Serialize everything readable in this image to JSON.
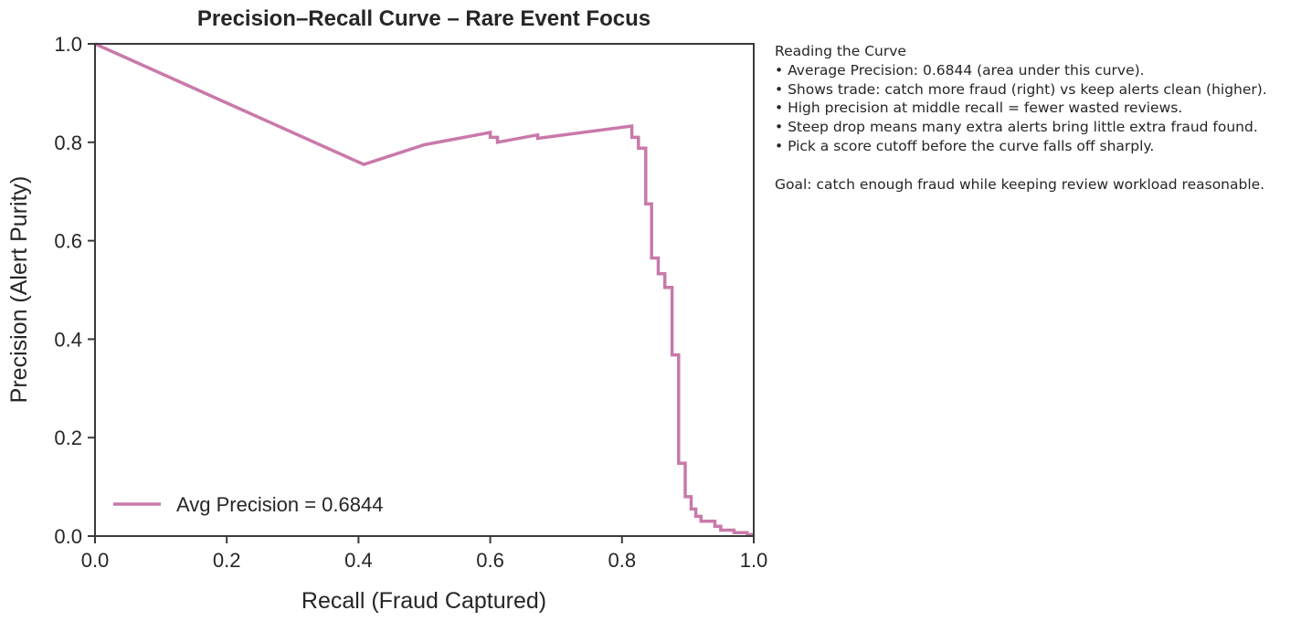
{
  "chart_data": {
    "type": "line",
    "title": "Precision–Recall Curve – Rare Event Focus",
    "xlabel": "Recall (Fraud Captured)",
    "ylabel": "Precision (Alert Purity)",
    "xlim": [
      0,
      1
    ],
    "ylim": [
      0,
      1
    ],
    "xticks": [
      "0.0",
      "0.2",
      "0.4",
      "0.6",
      "0.8",
      "1.0"
    ],
    "yticks": [
      "0.0",
      "0.2",
      "0.4",
      "0.6",
      "0.8",
      "1.0"
    ],
    "grid": false,
    "legend_placement": "lower-left",
    "series": [
      {
        "name": "Avg Precision = 0.6844",
        "color": "#c979aa",
        "x": [
          0.0,
          0.408,
          0.5,
          0.6,
          0.6,
          0.611,
          0.611,
          0.672,
          0.672,
          0.815,
          0.815,
          0.825,
          0.825,
          0.836,
          0.836,
          0.845,
          0.845,
          0.855,
          0.855,
          0.865,
          0.865,
          0.876,
          0.876,
          0.886,
          0.886,
          0.896,
          0.896,
          0.905,
          0.905,
          0.912,
          0.912,
          0.92,
          0.92,
          0.941,
          0.941,
          0.95,
          0.95,
          0.97,
          0.97,
          0.99,
          0.99,
          1.0
        ],
        "y": [
          1.0,
          0.755,
          0.795,
          0.82,
          0.81,
          0.81,
          0.8,
          0.815,
          0.808,
          0.833,
          0.81,
          0.81,
          0.788,
          0.788,
          0.675,
          0.675,
          0.565,
          0.565,
          0.533,
          0.533,
          0.505,
          0.505,
          0.368,
          0.368,
          0.148,
          0.148,
          0.08,
          0.08,
          0.055,
          0.055,
          0.04,
          0.04,
          0.03,
          0.03,
          0.02,
          0.02,
          0.012,
          0.012,
          0.007,
          0.007,
          0.003,
          0.003
        ]
      }
    ]
  },
  "notes": {
    "lines": [
      "Reading the Curve",
      "• Average Precision: 0.6844 (area under this curve).",
      "• Shows trade: catch more fraud (right) vs keep alerts clean (higher).",
      "• High precision at middle recall = fewer wasted reviews.",
      "• Steep drop means many extra alerts bring little extra fraud found.",
      "• Pick a score cutoff before the curve falls off sharply.",
      "",
      "Goal: catch enough fraud while keeping review workload reasonable."
    ]
  }
}
